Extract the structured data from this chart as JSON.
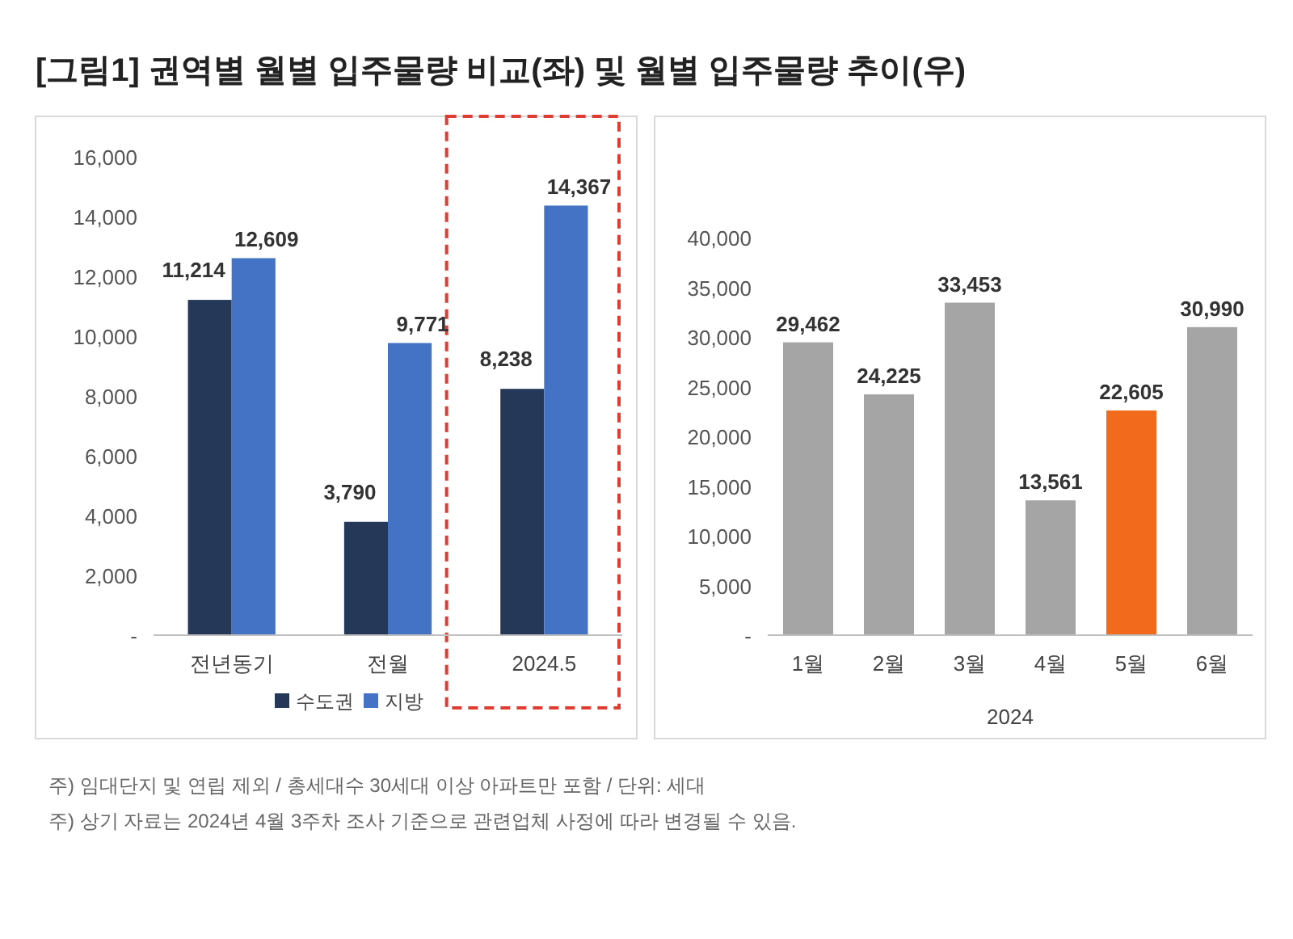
{
  "chart_data": [
    {
      "type": "bar",
      "title": "[그림1] 권역별 월별 입주물량 비교(좌) 및 월별 입주물량 추이(우)",
      "categories": [
        "전년동기",
        "전월",
        "2024.5"
      ],
      "series": [
        {
          "name": "수도권",
          "color": "#253858",
          "values": [
            11214,
            3790,
            8238
          ],
          "value_labels": [
            "11,214",
            "3,790",
            "8,238"
          ]
        },
        {
          "name": "지방",
          "color": "#4472c4",
          "values": [
            12609,
            9771,
            14367
          ],
          "value_labels": [
            "12,609",
            "9,771",
            "14,367"
          ]
        }
      ],
      "ylim": [
        0,
        16000
      ],
      "yticks": [
        {
          "value": 0,
          "label": "-"
        },
        {
          "value": 2000,
          "label": "2,000"
        },
        {
          "value": 4000,
          "label": "4,000"
        },
        {
          "value": 6000,
          "label": "6,000"
        },
        {
          "value": 8000,
          "label": "8,000"
        },
        {
          "value": 10000,
          "label": "10,000"
        },
        {
          "value": 12000,
          "label": "12,000"
        },
        {
          "value": 14000,
          "label": "14,000"
        },
        {
          "value": 16000,
          "label": "16,000"
        }
      ],
      "legend": "bottom",
      "grid": false,
      "annotations": [
        "주) 임대단지 및 연립 제외 / 총세대수 30세대 이상 아파트만 포함 / 단위: 세대",
        "주) 상기 자료는 2024년 4월 3주차 조사 기준으로 관련업체 사정에 따라 변경될 수 있음."
      ]
    },
    {
      "type": "bar",
      "categories": [
        "1월",
        "2월",
        "3월",
        "4월",
        "5월",
        "6월"
      ],
      "xlabel": "2024",
      "values": [
        29462,
        24225,
        33453,
        13561,
        22605,
        30990
      ],
      "value_labels": [
        "29,462",
        "24,225",
        "33,453",
        "13,561",
        "22,605",
        "30,990"
      ],
      "colors": [
        "#a5a5a5",
        "#a5a5a5",
        "#a5a5a5",
        "#a5a5a5",
        "#f26b1d",
        "#a5a5a5"
      ],
      "ylim": [
        0,
        40000
      ],
      "yticks": [
        {
          "value": 0,
          "label": "-"
        },
        {
          "value": 5000,
          "label": "5,000"
        },
        {
          "value": 10000,
          "label": "10,000"
        },
        {
          "value": 15000,
          "label": "15,000"
        },
        {
          "value": 20000,
          "label": "20,000"
        },
        {
          "value": 25000,
          "label": "25,000"
        },
        {
          "value": 30000,
          "label": "30,000"
        },
        {
          "value": 35000,
          "label": "35,000"
        },
        {
          "value": 40000,
          "label": "40,000"
        }
      ],
      "grid": false
    }
  ]
}
